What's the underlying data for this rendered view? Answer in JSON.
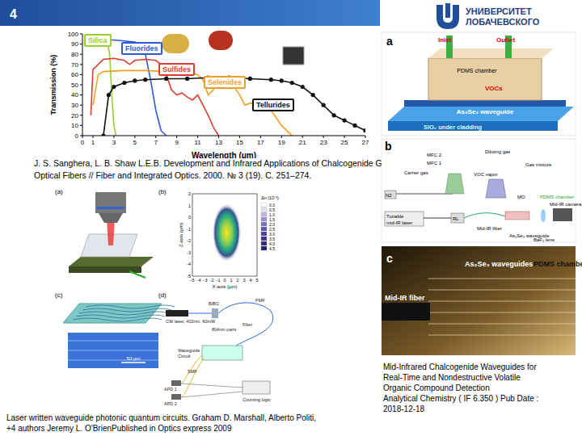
{
  "header": {
    "page": "4",
    "logo": [
      "УНИВЕРСИТЕТ",
      "ЛОБАЧЕВСКОГО"
    ]
  },
  "chart_data": {
    "type": "line",
    "xlabel": "Wavelength (μm)",
    "ylabel": "Transmission (%)",
    "xlim": [
      0,
      27
    ],
    "xticks": [
      0,
      1,
      3,
      5,
      7,
      9,
      11,
      13,
      15,
      17,
      19,
      21,
      23,
      25,
      27
    ],
    "ylim": [
      0,
      100
    ],
    "yticks": [
      0,
      10,
      20,
      30,
      40,
      50,
      60,
      70,
      80,
      90,
      100
    ],
    "grid": false,
    "series": [
      {
        "name": "Silica",
        "color": "#9acd32",
        "x": [
          0.2,
          0.5,
          1,
          1.5,
          2,
          2.4,
          2.6,
          2.8,
          3.0,
          3.2
        ],
        "values": [
          90,
          92,
          93,
          93,
          92,
          90,
          80,
          40,
          10,
          0
        ]
      },
      {
        "name": "Fluorides",
        "color": "#2a5bd7",
        "x": [
          0.3,
          1,
          2,
          3,
          4,
          5,
          5.5,
          6,
          6.5,
          7,
          7.5,
          8
        ],
        "values": [
          88,
          93,
          94,
          94,
          93,
          92,
          90,
          80,
          55,
          25,
          5,
          0
        ]
      },
      {
        "name": "Sulfides",
        "color": "#e03c2c",
        "x": [
          0.8,
          1,
          2,
          3,
          4,
          4.5,
          5,
          6,
          7,
          7.5,
          8,
          8.5,
          9,
          9.5,
          10,
          10.5,
          11,
          11.5,
          12,
          12.5,
          13
        ],
        "values": [
          20,
          65,
          75,
          76,
          74,
          70,
          74,
          75,
          74,
          70,
          60,
          45,
          40,
          42,
          38,
          35,
          40,
          30,
          20,
          8,
          0
        ]
      },
      {
        "name": "Selenides",
        "color": "#f0a020",
        "x": [
          1,
          1.5,
          2,
          4,
          6,
          8,
          10,
          11,
          11.5,
          12,
          12.5,
          13,
          14,
          15,
          15.5,
          16,
          17,
          18,
          19,
          20
        ],
        "values": [
          30,
          60,
          63,
          64,
          64,
          63,
          62,
          60,
          55,
          40,
          45,
          55,
          55,
          40,
          30,
          32,
          30,
          25,
          10,
          0
        ]
      },
      {
        "name": "Tellurides",
        "color": "#111111",
        "marker": "circle",
        "x": [
          2,
          2.5,
          3,
          4,
          5,
          6,
          8,
          10,
          12,
          14,
          16,
          18,
          19,
          20,
          21,
          22,
          23,
          24,
          25,
          26,
          27
        ],
        "values": [
          0,
          40,
          48,
          52,
          54,
          55,
          56,
          56,
          57,
          57,
          56,
          55,
          54,
          52,
          48,
          40,
          30,
          20,
          15,
          10,
          5
        ]
      }
    ]
  },
  "citation_top": [
    "J. S. Sanghera, L. B. Shaw L.E.B. Development and Infrared Applications of Chalcogenide Glass",
    "Optical Fibers // Fiber and Integrated Optics. 2000. № 3 (19). С. 251–274."
  ],
  "figure_left": {
    "panel_labels": [
      "(a)",
      "(b)",
      "(c)",
      "(d)"
    ],
    "heatmap": {
      "xlabel": "X-axis (μm)",
      "ylabel": "Z-axis (μm)",
      "xlim": [
        -5,
        5
      ],
      "ylim": [
        -5,
        2
      ],
      "xticks": [
        -5,
        -4,
        -3,
        -2,
        -1,
        0,
        1,
        2,
        3,
        4,
        5
      ],
      "yticks": [
        -5,
        -4,
        -3,
        -2,
        -1,
        0,
        1,
        2
      ],
      "colorbar_title": "Δn (10⁻³)",
      "colorbar_ticks": [
        {
          "value": 0,
          "label": "0.0"
        },
        0.5,
        {
          "value": 1,
          "label": "1.0"
        },
        1.5,
        {
          "value": 2,
          "label": "2.0"
        },
        2.5,
        {
          "value": 3,
          "label": "3.0"
        },
        3.5,
        {
          "value": 4,
          "label": "4.0"
        },
        4.5
      ],
      "peak": {
        "x": 0.3,
        "z": -1.3,
        "width_x": 4.5,
        "width_z": 5
      }
    },
    "scale_bar": "50 μm",
    "setup_labels": {
      "laser": "CW laser, 402nm, 60mW",
      "crystal": "BiBO",
      "fiber": "PMF",
      "pairs": "804nm pairs",
      "filter": "Filter",
      "circuit": "Waveguide Circuit",
      "smf": "SMF",
      "apd1": "APD 1",
      "apd2": "APD 2",
      "logic": "Counting logic"
    }
  },
  "caption_left": [
    "Laser written waveguide photonic quantum circuits. Graham D. Marshall, Alberto Politi,",
    "+4 authors Jeremy L. O'BrienPublished in Optics express 2009"
  ],
  "figure_right": {
    "a": {
      "label": "a",
      "inlet": "Inlet",
      "outlet": "Outlet",
      "chamber": "PDMS chamber",
      "vocs": "VOCs",
      "waveguide": "As₂Se₃ waveguide",
      "cladding": "SiO₂ under cladding"
    },
    "b": {
      "label": "b",
      "mfc2": "MFC 2",
      "mfc1": "MFC 1",
      "diluting": "Diluting gas",
      "carrier": "Carrier gas",
      "n2": "N2",
      "vapor": "VOC vapor",
      "mixture": "Gas mixture",
      "laser": "Tunable mid-IR laser",
      "rl": "RL",
      "fiber": "Mid-IR fiber",
      "mo": "MO",
      "chamber": "PDMS chamber",
      "waveguide": "As₂Se₃ waveguide",
      "lens": "BaF₂ lens",
      "camera": "Mid-IR camera"
    },
    "c": {
      "label": "c",
      "fiber": "Mid-IR fiber",
      "waveguides": "As₂Se₃ waveguides",
      "chamber": "PDMS chamber"
    }
  },
  "caption_right": [
    "Mid-Infrared Chalcogenide Waveguides for",
    "Real-Time and Nondestructive Volatile",
    "Organic Compound Detection",
    "Analytical Chemistry ( IF 6.350 ) Pub Date :",
    "2018-12-18"
  ]
}
